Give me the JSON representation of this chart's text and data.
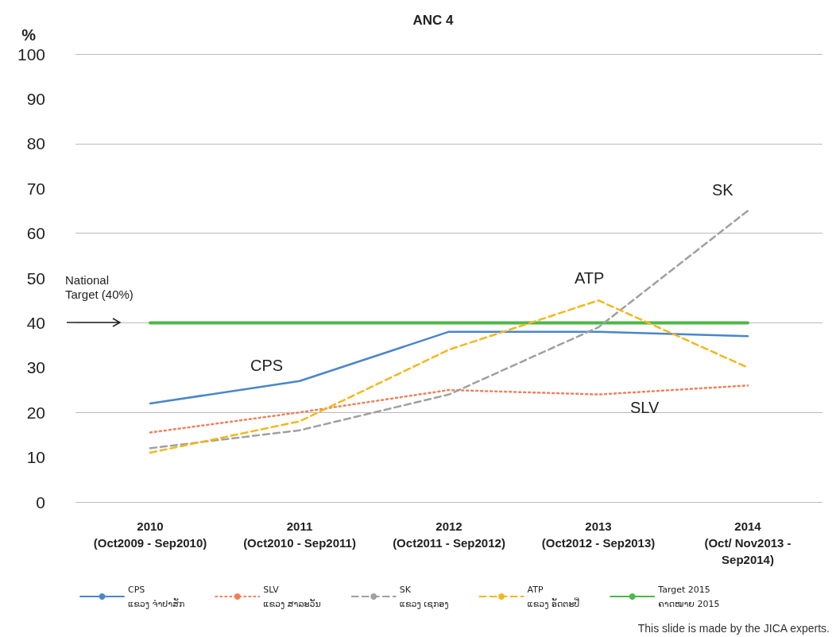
{
  "chart_data": {
    "type": "line",
    "title": "ANC 4",
    "ylabel": "%",
    "categories": [
      "2010\n(Oct2009 - Sep2010)",
      "2011\n(Oct2010 - Sep2011)",
      "2012\n(Oct2011 - Sep2012)",
      "2013\n(Oct2012 - Sep2013)",
      "2014\n(Oct/ Nov2013 -\nSep2014)"
    ],
    "series": [
      {
        "name": "CPS\nແຂວງ ຈຳປາສັກ",
        "color": "#4a86c8",
        "line_style": "solid",
        "values": [
          22,
          27,
          38,
          38,
          37
        ]
      },
      {
        "name": "SLV\nແຂວງ ສາລະວັນ",
        "color": "#f0805a",
        "line_style": "dotted",
        "values": [
          15.5,
          20,
          25,
          24,
          26
        ]
      },
      {
        "name": "SK\nແຂວງ ເຊກອງ",
        "color": "#a0a0a0",
        "line_style": "dashed",
        "values": [
          12,
          16,
          24,
          39,
          65
        ]
      },
      {
        "name": "ATP\nແຂວງ ອັດຕະປື",
        "color": "#f2b81c",
        "line_style": "dashed",
        "values": [
          11,
          18,
          34,
          45,
          30
        ]
      },
      {
        "name": "Target 2015\nຄາດໝາຍ 2015",
        "color": "#4cb848",
        "line_style": "solid",
        "values": [
          40,
          40,
          40,
          40,
          40
        ]
      }
    ],
    "ylim": [
      0,
      100
    ],
    "yticks": [
      0,
      10,
      20,
      30,
      40,
      50,
      60,
      70,
      80,
      90,
      100
    ],
    "grid": "y",
    "legend": "bottom",
    "marker": "none",
    "annotations": [
      {
        "text": "CPS",
        "x": "2011\n(Oct2010 - Sep2011)",
        "y": 27
      },
      {
        "text": "SLV",
        "x": "2013\n(Oct2012 - Sep2013)",
        "y": 24
      },
      {
        "text": "SK",
        "x": "2014\n(Oct/ Nov2013 -\nSep2014)",
        "y": 65
      },
      {
        "text": "ATP",
        "x": "2013\n(Oct2012 - Sep2013)",
        "y": 45
      },
      "National\nTarget (40%)",
      "This slide is made by the JICA experts."
    ]
  }
}
